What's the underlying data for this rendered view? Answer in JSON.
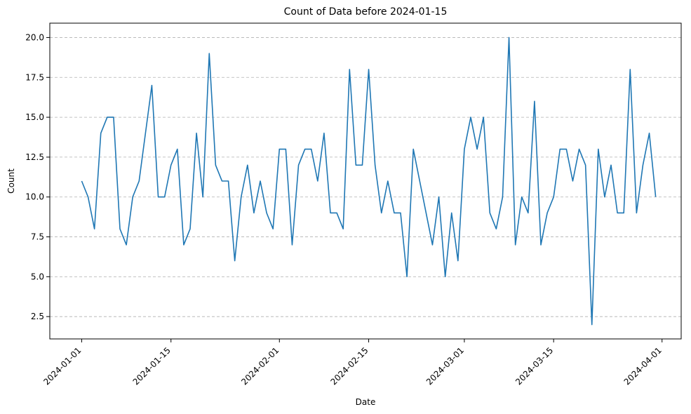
{
  "chart_data": {
    "type": "line",
    "title": "Count of Data before 2024-01-15",
    "xlabel": "Date",
    "ylabel": "Count",
    "xlim": [
      "2023-12-27",
      "2024-04-04"
    ],
    "ylim": [
      1.1,
      20.9
    ],
    "grid": {
      "y": true,
      "x": false,
      "style": "dashed"
    },
    "line_color": "#1f77b4",
    "x_ticks": [
      "2024-01-01",
      "2024-01-15",
      "2024-02-01",
      "2024-02-15",
      "2024-03-01",
      "2024-03-15",
      "2024-04-01"
    ],
    "y_ticks": [
      "2.5",
      "5.0",
      "7.5",
      "10.0",
      "12.5",
      "15.0",
      "17.5",
      "20.0"
    ],
    "series": [
      {
        "start_date": "2024-01-01",
        "values": [
          11,
          10,
          8,
          14,
          15,
          15,
          8,
          7,
          10,
          11,
          14,
          17,
          10,
          10,
          12,
          13,
          7,
          8,
          14,
          10,
          19,
          12,
          11,
          11,
          6,
          10,
          12,
          9,
          11,
          9,
          8,
          13,
          13,
          7,
          12,
          13,
          13,
          11,
          14,
          9,
          9,
          8,
          18,
          12,
          12,
          18,
          12,
          9,
          11,
          9,
          9,
          5,
          13,
          11,
          9,
          7,
          10,
          5,
          9,
          6,
          13,
          15,
          13,
          15,
          9,
          8,
          10,
          20,
          7,
          10,
          9,
          16,
          7,
          9,
          10,
          13,
          13,
          11,
          13,
          12,
          2,
          13,
          10,
          12,
          9,
          9,
          18,
          9,
          12,
          14,
          10
        ]
      }
    ]
  }
}
